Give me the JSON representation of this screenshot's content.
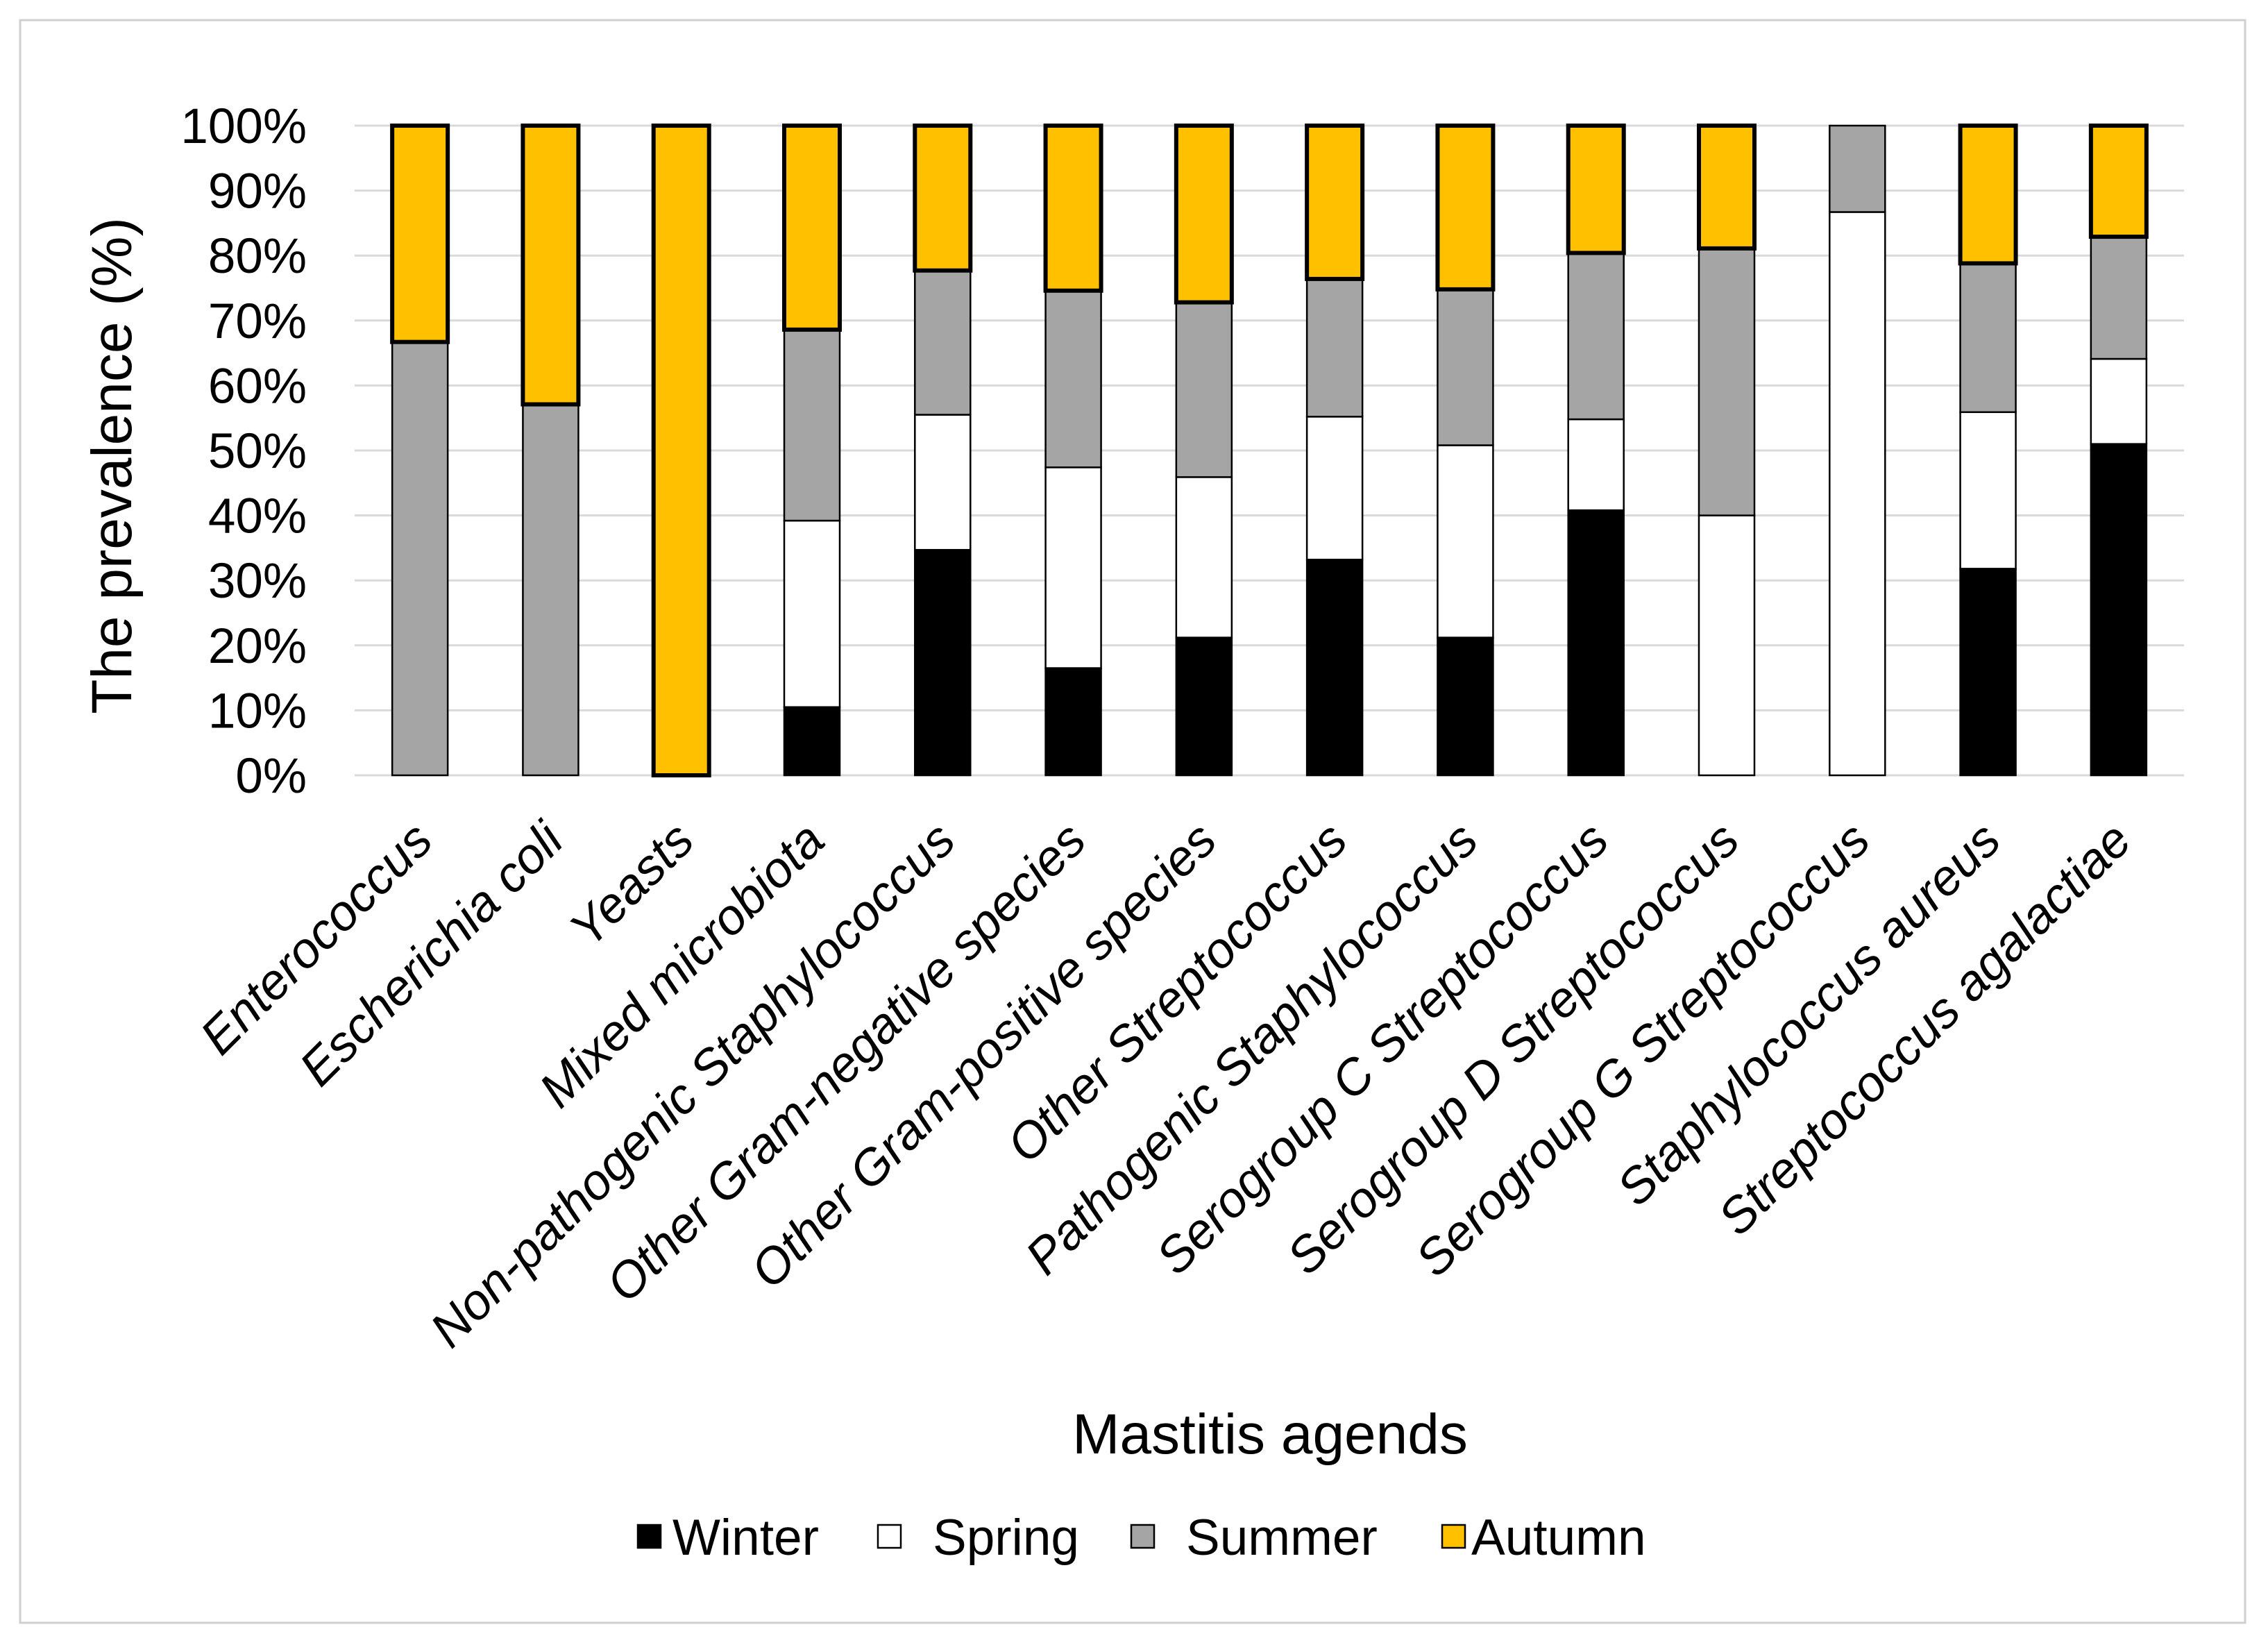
{
  "chart_data": {
    "type": "bar",
    "stacked": true,
    "xlabel": "Mastitis agends",
    "ylabel": "The prevalence (%)",
    "ylim": [
      0,
      100
    ],
    "yticks": [
      "0%",
      "10%",
      "20%",
      "30%",
      "40%",
      "50%",
      "60%",
      "70%",
      "80%",
      "90%",
      "100%"
    ],
    "grid": true,
    "legend_position": "bottom",
    "categories": [
      "Enterococcus",
      "Escherichia coli",
      "Yeasts",
      "Mixed microbiota",
      "Non-pathogenic Staphylococcus",
      "Other Gram-negative species",
      "Other Gram-positive species",
      "Other Streptococcus",
      "Pathogenic Staphylococcus",
      "Serogroup C Streptococcus",
      "Serogroup D Streptococcus",
      "Serogroup G Streptococcus",
      "Staphylococcus aureus",
      "Streptococcus agalactiae"
    ],
    "series": [
      {
        "name": "Winter",
        "color": "#000000",
        "values": [
          0,
          0,
          0,
          10.5,
          34.7,
          16.5,
          21.2,
          33.2,
          21.2,
          40.8,
          0,
          0,
          31.8,
          51.0
        ]
      },
      {
        "name": "Spring",
        "color": "#FFFFFF",
        "values": [
          0,
          0,
          0,
          28.7,
          20.8,
          30.9,
          24.7,
          22.0,
          29.6,
          14.0,
          40.0,
          86.7,
          24.1,
          13.1
        ]
      },
      {
        "name": "Summer",
        "color": "#A5A5A5",
        "values": [
          66.7,
          57.1,
          0,
          29.4,
          22.2,
          27.2,
          26.9,
          21.2,
          24.0,
          25.6,
          41.1,
          13.3,
          22.9,
          18.8
        ]
      },
      {
        "name": "Autumn",
        "color": "#FFC000",
        "values": [
          33.3,
          42.9,
          100,
          31.4,
          22.3,
          25.4,
          27.2,
          23.6,
          25.2,
          19.6,
          18.9,
          0,
          21.2,
          17.1
        ]
      }
    ]
  }
}
